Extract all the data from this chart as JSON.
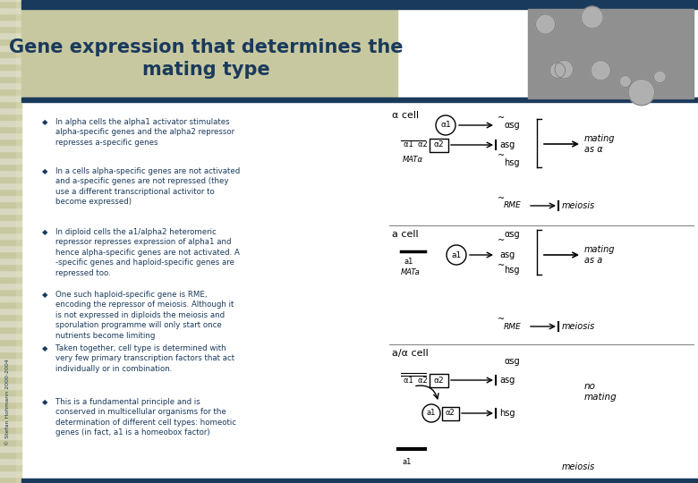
{
  "title_line1": "Gene expression that determines the",
  "title_line2": "mating type",
  "title_color": "#1a3a5c",
  "title_fontsize": 15,
  "bg_color": "#ffffff",
  "stripe_color_a": "#c8c8a0",
  "stripe_color_b": "#d8d8c0",
  "top_bar_color": "#1a3a5c",
  "bottom_bar_color": "#1a3a5c",
  "header_bg": "#c8c8a0",
  "bullet_color": "#1a3a5c",
  "bullet_text_color": "#1a3a5c",
  "bullet_fontsize": 6.2,
  "bullets": [
    "In alpha cells the alpha1 activator stimulates\nalpha-specific genes and the alpha2 repressor\nrepresses a-specific genes",
    "In a cells alpha-specific genes are not activated\nand a-specific genes are not repressed (they\nuse a different transcriptional activitor to\nbecome expressed)",
    "In diploid cells the a1/alpha2 heteromeric\nrepressor represses expression of alpha1 and\nhence alpha-specific genes are not activated. A\n-specific genes and haploid-specific genes are\nrepressed too.",
    "One such haploid-specific gene is RME,\nencoding the repressor of meiosis. Although it\nis not expressed in diploids the meiosis and\nsporulation programme will only start once\nnutrients become limiting",
    "Taken together, cell type is determined with\nvery few primary transcription factors that act\nindividually or in combination.",
    "This is a fundamental principle and is\nconserved in multicellular organisms for the\ndetermination of different cell types: homeotic\ngenes (in fact, a1 is a homeobox factor)"
  ],
  "copyright_text": "© Stefan Hohmann 2000-2004",
  "diag_section_line_color": "#888888",
  "diag_bg": "#f5f5f0"
}
